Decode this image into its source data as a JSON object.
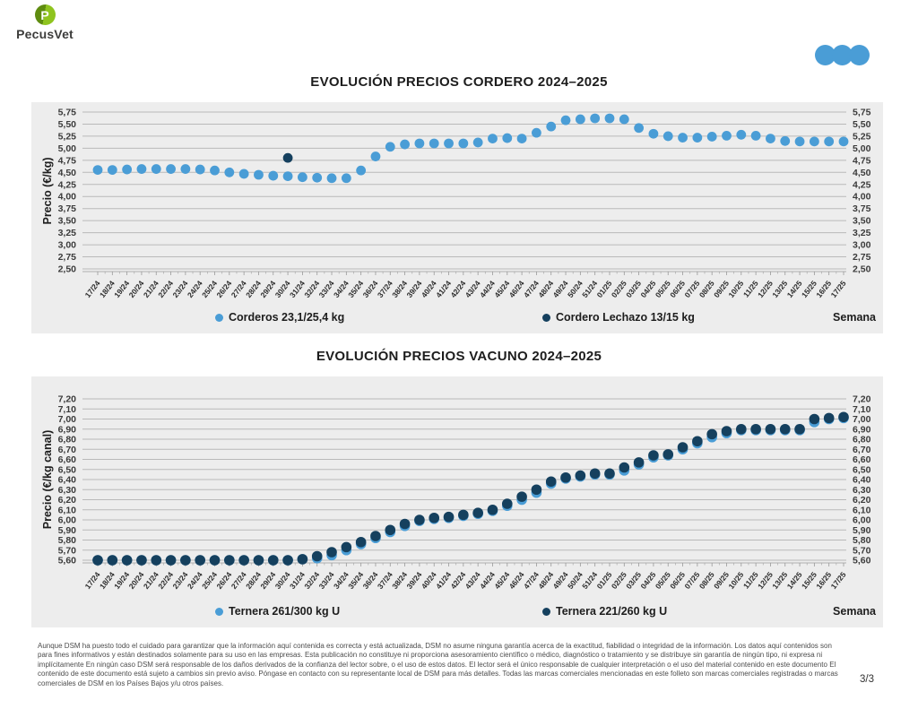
{
  "page": {
    "logo": {
      "text": "PecusVet",
      "initial": "P"
    },
    "header_dots_color": "#4a9dd6",
    "footer": {
      "disclaimer": "Aunque DSM ha puesto todo el cuidado para garantizar que la información aquí contenida es correcta y está actualizada, DSM no asume ninguna garantía acerca de la exactitud, fiabilidad o integridad de la información. Los datos aquí contenidos son para fines informativos y están destinados solamente para su uso en las empresas. Esta publicación no constituye ni proporciona asesoramiento científico o médico, diagnóstico o tratamiento y se distribuye sin garantía de ningún tipo, ni expresa ni implícitamente En ningún caso DSM será responsable de los daños derivados de la confianza del lector sobre, o el uso de estos datos. El lector será el único responsable de cualquier interpretación o el uso del material contenido en este documento El contenido de este documento está sujeto a cambios sin previo aviso. Póngase en contacto con su representante local de DSM para más detalles. Todas las marcas comerciales mencionadas en este folleto son marcas comerciales registradas o marcas comerciales de DSM en los Países Bajos y/u otros países.",
      "page_number": "3/3"
    }
  },
  "chart_data": [
    {
      "type": "scatter",
      "title": "EVOLUCIÓN PRECIOS CORDERO 2024–2025",
      "xlabel": "Semana",
      "ylabel": "Precio (€/kg)",
      "ylim": [
        2.5,
        5.75
      ],
      "ystep": 0.25,
      "grid": true,
      "legend_position": "bottom",
      "categories": [
        "17/24",
        "18/24",
        "19/24",
        "20/24",
        "21/24",
        "22/24",
        "23/24",
        "24/24",
        "25/24",
        "26/24",
        "27/24",
        "28/24",
        "29/24",
        "30/24",
        "31/24",
        "32/24",
        "33/24",
        "34/24",
        "35/24",
        "36/24",
        "37/24",
        "38/24",
        "39/24",
        "40/24",
        "41/24",
        "42/24",
        "43/24",
        "44/24",
        "45/24",
        "46/24",
        "47/24",
        "48/24",
        "49/24",
        "50/24",
        "51/24",
        "01/25",
        "02/25",
        "03/25",
        "04/25",
        "05/25",
        "06/25",
        "07/25",
        "08/25",
        "09/25",
        "10/25",
        "11/25",
        "12/25",
        "13/25",
        "14/25",
        "15/25",
        "16/25",
        "17/25"
      ],
      "series": [
        {
          "name": "Corderos 23,1/25,4 kg",
          "color": "#4a9dd6",
          "values": [
            4.55,
            4.55,
            4.56,
            4.57,
            4.57,
            4.57,
            4.57,
            4.56,
            4.54,
            4.5,
            4.47,
            4.45,
            4.43,
            4.42,
            4.4,
            4.39,
            4.38,
            4.38,
            4.54,
            4.83,
            5.03,
            5.08,
            5.1,
            5.1,
            5.1,
            5.1,
            5.12,
            5.2,
            5.21,
            5.2,
            5.32,
            5.45,
            5.58,
            5.6,
            5.62,
            5.62,
            5.6,
            5.42,
            5.3,
            5.25,
            5.22,
            5.22,
            5.24,
            5.26,
            5.28,
            5.26,
            5.2,
            5.15,
            5.14,
            5.14,
            5.14,
            5.14
          ]
        },
        {
          "name": "Cordero Lechazo 13/15 kg",
          "color": "#15405e",
          "values": [
            null,
            null,
            null,
            null,
            null,
            null,
            null,
            null,
            null,
            null,
            null,
            null,
            null,
            4.8,
            null,
            null,
            null,
            null,
            null,
            null,
            null,
            null,
            null,
            null,
            null,
            null,
            null,
            null,
            null,
            null,
            null,
            null,
            null,
            null,
            null,
            null,
            null,
            null,
            null,
            null,
            null,
            null,
            null,
            null,
            null,
            null,
            null,
            null,
            null,
            null,
            null,
            null
          ]
        }
      ]
    },
    {
      "type": "scatter",
      "title": "EVOLUCIÓN PRECIOS VACUNO 2024–2025",
      "xlabel": "Semana",
      "ylabel": "Precio (€/kg canal)",
      "ylim": [
        5.6,
        7.2
      ],
      "ystep": 0.1,
      "grid": true,
      "legend_position": "bottom",
      "categories": [
        "17/24",
        "18/24",
        "19/24",
        "20/24",
        "21/24",
        "22/24",
        "23/24",
        "24/24",
        "25/24",
        "26/24",
        "27/24",
        "28/24",
        "29/24",
        "30/24",
        "31/24",
        "32/24",
        "33/24",
        "34/24",
        "35/24",
        "36/24",
        "37/24",
        "38/24",
        "39/24",
        "40/24",
        "41/24",
        "42/24",
        "43/24",
        "44/24",
        "45/24",
        "46/24",
        "47/24",
        "48/24",
        "49/24",
        "50/24",
        "51/24",
        "01/25",
        "02/25",
        "03/25",
        "04/25",
        "05/25",
        "06/25",
        "07/25",
        "08/25",
        "09/25",
        "10/25",
        "11/25",
        "12/25",
        "13/25",
        "14/25",
        "15/25",
        "16/25",
        "17/25"
      ],
      "series": [
        {
          "name": "Ternera 261/300 kg U",
          "color": "#4a9dd6",
          "values": [
            5.6,
            5.6,
            5.6,
            5.6,
            5.6,
            5.6,
            5.6,
            5.6,
            5.6,
            5.6,
            5.6,
            5.6,
            5.6,
            5.6,
            5.61,
            5.62,
            5.65,
            5.7,
            5.76,
            5.82,
            5.88,
            5.94,
            5.99,
            6.01,
            6.02,
            6.04,
            6.06,
            6.09,
            6.14,
            6.2,
            6.27,
            6.36,
            6.41,
            6.43,
            6.45,
            6.45,
            6.49,
            6.55,
            6.62,
            6.64,
            6.7,
            6.76,
            6.82,
            6.86,
            6.89,
            6.89,
            6.89,
            6.89,
            6.89,
            6.97,
            7.0,
            7.01
          ]
        },
        {
          "name": "Ternera 221/260 kg U",
          "color": "#15405e",
          "values": [
            5.6,
            5.6,
            5.6,
            5.6,
            5.6,
            5.6,
            5.6,
            5.6,
            5.6,
            5.6,
            5.6,
            5.6,
            5.6,
            5.6,
            5.61,
            5.64,
            5.68,
            5.73,
            5.78,
            5.84,
            5.9,
            5.96,
            6.0,
            6.02,
            6.03,
            6.05,
            6.07,
            6.1,
            6.16,
            6.23,
            6.3,
            6.38,
            6.42,
            6.44,
            6.46,
            6.46,
            6.52,
            6.57,
            6.64,
            6.65,
            6.72,
            6.78,
            6.85,
            6.88,
            6.9,
            6.9,
            6.9,
            6.9,
            6.9,
            7.0,
            7.01,
            7.02
          ]
        }
      ]
    }
  ]
}
